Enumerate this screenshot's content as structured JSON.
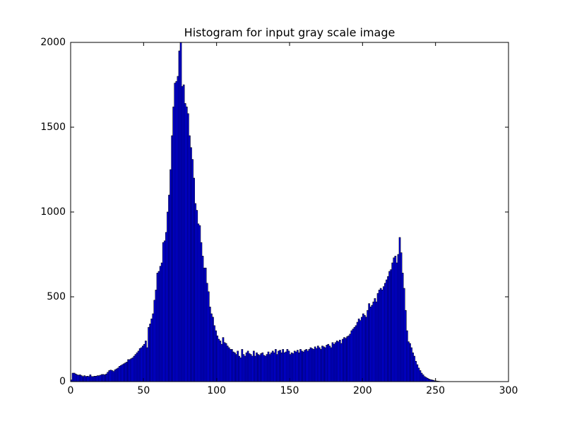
{
  "chart_data": {
    "type": "histogram",
    "title": "Histogram for input gray scale image",
    "bins": [
      0,
      1,
      2,
      3,
      4,
      5,
      6,
      7,
      8,
      9,
      10,
      11,
      12,
      13,
      14,
      15,
      16,
      17,
      18,
      19,
      20,
      21,
      22,
      23,
      24,
      25,
      26,
      27,
      28,
      29,
      30,
      31,
      32,
      33,
      34,
      35,
      36,
      37,
      38,
      39,
      40,
      41,
      42,
      43,
      44,
      45,
      46,
      47,
      48,
      49,
      50,
      51,
      52,
      53,
      54,
      55,
      56,
      57,
      58,
      59,
      60,
      61,
      62,
      63,
      64,
      65,
      66,
      67,
      68,
      69,
      70,
      71,
      72,
      73,
      74,
      75,
      76,
      77,
      78,
      79,
      80,
      81,
      82,
      83,
      84,
      85,
      86,
      87,
      88,
      89,
      90,
      91,
      92,
      93,
      94,
      95,
      96,
      97,
      98,
      99,
      100,
      101,
      102,
      103,
      104,
      105,
      106,
      107,
      108,
      109,
      110,
      111,
      112,
      113,
      114,
      115,
      116,
      117,
      118,
      119,
      120,
      121,
      122,
      123,
      124,
      125,
      126,
      127,
      128,
      129,
      130,
      131,
      132,
      133,
      134,
      135,
      136,
      137,
      138,
      139,
      140,
      141,
      142,
      143,
      144,
      145,
      146,
      147,
      148,
      149,
      150,
      151,
      152,
      153,
      154,
      155,
      156,
      157,
      158,
      159,
      160,
      161,
      162,
      163,
      164,
      165,
      166,
      167,
      168,
      169,
      170,
      171,
      172,
      173,
      174,
      175,
      176,
      177,
      178,
      179,
      180,
      181,
      182,
      183,
      184,
      185,
      186,
      187,
      188,
      189,
      190,
      191,
      192,
      193,
      194,
      195,
      196,
      197,
      198,
      199,
      200,
      201,
      202,
      203,
      204,
      205,
      206,
      207,
      208,
      209,
      210,
      211,
      212,
      213,
      214,
      215,
      216,
      217,
      218,
      219,
      220,
      221,
      222,
      223,
      224,
      225,
      226,
      227,
      228,
      229,
      230,
      231,
      232,
      233,
      234,
      235,
      236,
      237,
      238,
      239,
      240,
      241,
      242,
      243,
      244,
      245,
      246,
      247,
      248,
      249,
      250,
      251,
      252,
      253,
      254,
      255,
      256
    ],
    "values": [
      10,
      50,
      50,
      45,
      40,
      38,
      40,
      35,
      30,
      35,
      30,
      32,
      30,
      40,
      30,
      30,
      32,
      32,
      35,
      35,
      38,
      42,
      42,
      40,
      45,
      55,
      65,
      68,
      65,
      60,
      70,
      75,
      80,
      90,
      95,
      100,
      105,
      110,
      115,
      130,
      130,
      135,
      140,
      150,
      160,
      170,
      180,
      195,
      200,
      210,
      220,
      240,
      200,
      320,
      340,
      370,
      400,
      480,
      540,
      640,
      650,
      680,
      700,
      820,
      830,
      880,
      1000,
      1100,
      1250,
      1450,
      1620,
      1760,
      1770,
      1800,
      1950,
      2000,
      1740,
      1750,
      1640,
      1620,
      1580,
      1450,
      1380,
      1310,
      1200,
      1050,
      1010,
      930,
      920,
      820,
      740,
      670,
      670,
      580,
      530,
      440,
      400,
      380,
      330,
      300,
      270,
      250,
      240,
      220,
      260,
      230,
      225,
      210,
      200,
      190,
      190,
      175,
      170,
      160,
      180,
      150,
      140,
      190,
      160,
      150,
      170,
      180,
      165,
      160,
      150,
      180,
      150,
      170,
      160,
      155,
      165,
      170,
      155,
      150,
      160,
      175,
      160,
      170,
      180,
      170,
      190,
      160,
      180,
      185,
      170,
      190,
      170,
      175,
      190,
      180,
      160,
      170,
      165,
      180,
      175,
      185,
      170,
      190,
      180,
      175,
      185,
      190,
      180,
      190,
      200,
      195,
      190,
      205,
      195,
      210,
      200,
      190,
      210,
      205,
      200,
      215,
      220,
      210,
      200,
      230,
      220,
      230,
      240,
      235,
      245,
      225,
      250,
      260,
      255,
      265,
      270,
      280,
      300,
      310,
      320,
      330,
      350,
      370,
      360,
      380,
      400,
      390,
      380,
      420,
      460,
      440,
      450,
      470,
      490,
      470,
      520,
      540,
      550,
      540,
      560,
      580,
      600,
      620,
      650,
      660,
      700,
      730,
      740,
      700,
      750,
      850,
      760,
      640,
      550,
      420,
      300,
      235,
      225,
      200,
      170,
      150,
      120,
      100,
      80,
      65,
      50,
      40,
      30,
      25,
      20,
      15,
      12,
      10,
      8,
      5,
      4,
      3,
      2,
      1,
      1,
      0
    ],
    "color": "#0000ff",
    "xlim": [
      0,
      300
    ],
    "xticks": [
      0,
      50,
      100,
      150,
      200,
      250,
      300
    ],
    "ylim": [
      0,
      2000
    ],
    "yticks": [
      0,
      500,
      1000,
      1500,
      2000
    ]
  }
}
